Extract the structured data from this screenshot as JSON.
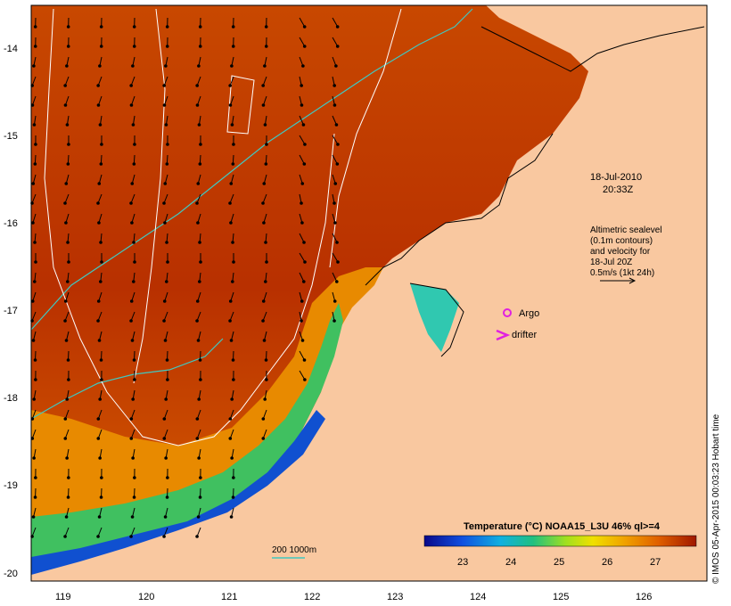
{
  "map": {
    "timestamp": [
      "18-Jul-2010",
      "20:33Z"
    ],
    "altimetry_note": [
      "Altimetric sealevel",
      "(0.1m contours)",
      "and velocity for",
      "18-Jul 20Z",
      "0.5m/s (1kt 24h)"
    ],
    "legend_argo": "Argo",
    "legend_drifter": "drifter",
    "depth_legend": "200  1000m",
    "colorbar_title": "Temperature (°C) NOAA15_L3U 46% ql>=4",
    "colorbar_ticks": [
      "23",
      "24",
      "25",
      "26",
      "27"
    ],
    "credit": "© IMOS 05-Apr-2015 00:03:23 Hobart time",
    "lat_labels": [
      "-14",
      "-15",
      "-16",
      "-17",
      "-18",
      "-19",
      "-20"
    ],
    "lon_labels": [
      "119",
      "120",
      "121",
      "122",
      "123",
      "124",
      "125",
      "126"
    ],
    "colors": {
      "land": "#f9c8a0",
      "sst_warm": "#b83000",
      "sst_mid": "#e08000",
      "sst_cool": "#20c070",
      "sst_cold": "#1040c0",
      "contour_200": "#40c8c0",
      "altimetry_contour": "#ffffff",
      "argo_marker": "#e020e0",
      "drifter_marker": "#e020e0"
    }
  }
}
